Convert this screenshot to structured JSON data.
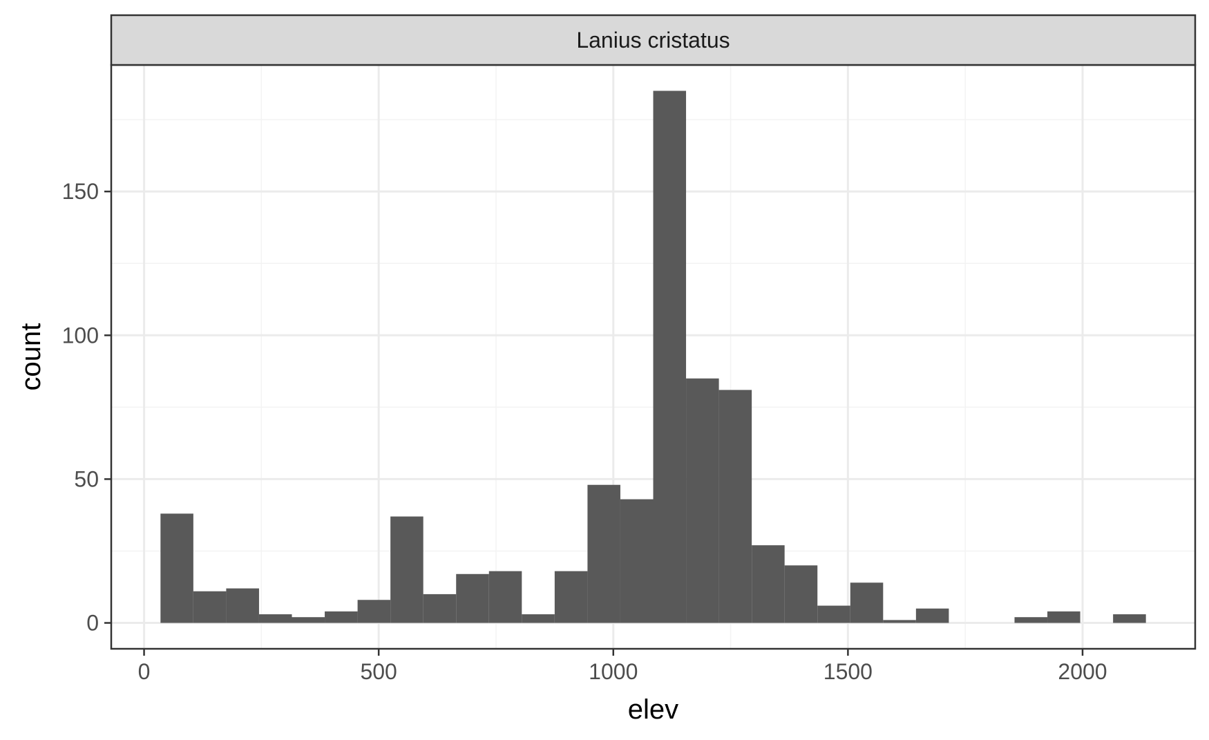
{
  "colors": {
    "background": "#ffffff",
    "panel_border": "#333333",
    "strip_fill": "#d9d9d9",
    "grid_major": "#ebebeb",
    "grid_minor": "#f3f3f3",
    "bar_fill": "#595959",
    "tick_text": "#4d4d4d",
    "tick_line": "#333333"
  },
  "chart_data": {
    "type": "bar",
    "subtype": "histogram",
    "facet_label": "Lanius cristatus",
    "xlabel": "elev",
    "ylabel": "count",
    "xlim": [
      -70,
      2240
    ],
    "ylim": [
      -9,
      194
    ],
    "x_ticks": [
      0,
      500,
      1000,
      1500,
      2000
    ],
    "x_tick_labels": [
      "0",
      "500",
      "1000",
      "1500",
      "2000"
    ],
    "y_ticks": [
      0,
      50,
      100,
      150
    ],
    "y_tick_labels": [
      "0",
      "50",
      "100",
      "150"
    ],
    "x_minor_ticks": [
      250,
      750,
      1250,
      1750
    ],
    "y_minor_ticks": [
      25,
      75,
      125,
      175
    ],
    "grid": true,
    "bin_width": 70,
    "bins": [
      {
        "x0": 35,
        "x1": 105,
        "count": 38
      },
      {
        "x0": 105,
        "x1": 175,
        "count": 11
      },
      {
        "x0": 175,
        "x1": 245,
        "count": 12
      },
      {
        "x0": 245,
        "x1": 315,
        "count": 3
      },
      {
        "x0": 315,
        "x1": 385,
        "count": 2
      },
      {
        "x0": 385,
        "x1": 455,
        "count": 4
      },
      {
        "x0": 455,
        "x1": 525,
        "count": 8
      },
      {
        "x0": 525,
        "x1": 595,
        "count": 37
      },
      {
        "x0": 595,
        "x1": 665,
        "count": 10
      },
      {
        "x0": 665,
        "x1": 735,
        "count": 17
      },
      {
        "x0": 735,
        "x1": 805,
        "count": 18
      },
      {
        "x0": 805,
        "x1": 875,
        "count": 3
      },
      {
        "x0": 875,
        "x1": 945,
        "count": 18
      },
      {
        "x0": 945,
        "x1": 1015,
        "count": 48
      },
      {
        "x0": 1015,
        "x1": 1085,
        "count": 43
      },
      {
        "x0": 1085,
        "x1": 1155,
        "count": 185
      },
      {
        "x0": 1155,
        "x1": 1225,
        "count": 85
      },
      {
        "x0": 1225,
        "x1": 1295,
        "count": 81
      },
      {
        "x0": 1295,
        "x1": 1365,
        "count": 27
      },
      {
        "x0": 1365,
        "x1": 1435,
        "count": 20
      },
      {
        "x0": 1435,
        "x1": 1505,
        "count": 6
      },
      {
        "x0": 1505,
        "x1": 1575,
        "count": 14
      },
      {
        "x0": 1575,
        "x1": 1645,
        "count": 1
      },
      {
        "x0": 1645,
        "x1": 1715,
        "count": 5
      },
      {
        "x0": 1715,
        "x1": 1785,
        "count": 0
      },
      {
        "x0": 1785,
        "x1": 1855,
        "count": 0
      },
      {
        "x0": 1855,
        "x1": 1925,
        "count": 2
      },
      {
        "x0": 1925,
        "x1": 1995,
        "count": 4
      },
      {
        "x0": 1995,
        "x1": 2065,
        "count": 0
      },
      {
        "x0": 2065,
        "x1": 2135,
        "count": 3
      }
    ]
  }
}
